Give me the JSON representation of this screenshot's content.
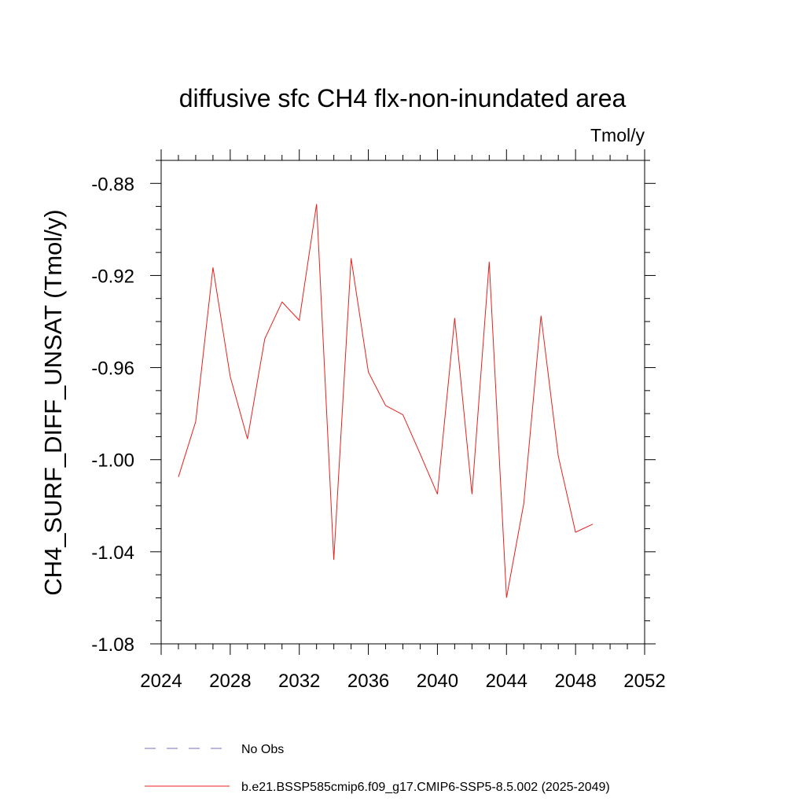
{
  "chart_data": {
    "type": "line",
    "title": "diffusive sfc CH4 flx-non-inundated area",
    "units_label": "Tmol/y",
    "ylabel": "CH4_SURF_DIFF_UNSAT  (Tmol/y)",
    "xlabel": "",
    "xlim": [
      2024,
      2052
    ],
    "ylim": [
      -1.08,
      -0.87
    ],
    "x_ticks": [
      2024,
      2028,
      2032,
      2036,
      2040,
      2044,
      2048,
      2052
    ],
    "y_ticks": [
      -1.08,
      -1.04,
      -1.0,
      -0.96,
      -0.92,
      -0.88
    ],
    "x_tick_labels": [
      "2024",
      "2028",
      "2032",
      "2036",
      "2040",
      "2044",
      "2048",
      "2052"
    ],
    "y_tick_labels": [
      "-1.08",
      "-1.04",
      "-1.00",
      "-0.96",
      "-0.92",
      "-0.88"
    ],
    "grid": false,
    "legend_position": "bottom",
    "series": [
      {
        "name": "No Obs",
        "color": "#7a6fb8",
        "style": "dashed",
        "x": [],
        "values": []
      },
      {
        "name": "b.e21.BSSP585cmip6.f09_g17.CMIP6-SSP5-8.5.002 (2025-2049)",
        "color": "#e8201c",
        "style": "solid",
        "x": [
          2025,
          2026,
          2027,
          2028,
          2029,
          2030,
          2031,
          2032,
          2033,
          2034,
          2035,
          2036,
          2037,
          2038,
          2039,
          2040,
          2041,
          2042,
          2043,
          2044,
          2045,
          2046,
          2047,
          2048,
          2049
        ],
        "values": [
          -1.0075,
          -0.9835,
          -0.9165,
          -0.964,
          -0.991,
          -0.9475,
          -0.9315,
          -0.9395,
          -0.889,
          -1.0435,
          -0.9125,
          -0.962,
          -0.9765,
          -0.9805,
          -0.9975,
          -1.015,
          -0.9385,
          -1.015,
          -0.914,
          -1.06,
          -1.019,
          -0.9375,
          -0.9985,
          -1.0315,
          -1.028
        ]
      }
    ]
  }
}
